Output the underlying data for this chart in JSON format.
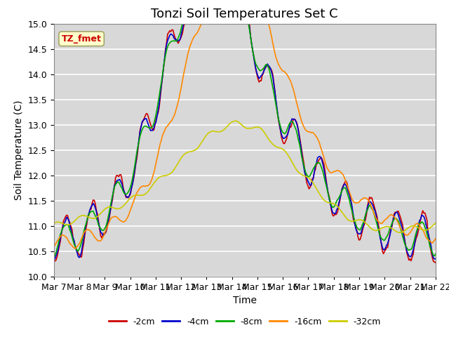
{
  "title": "Tonzi Soil Temperatures Set C",
  "xlabel": "Time",
  "ylabel": "Soil Temperature (C)",
  "ylim": [
    10.0,
    15.0
  ],
  "yticks": [
    10.0,
    10.5,
    11.0,
    11.5,
    12.0,
    12.5,
    13.0,
    13.5,
    14.0,
    14.5,
    15.0
  ],
  "xtick_labels": [
    "Mar 7",
    "Mar 8",
    "Mar 9",
    "Mar 10",
    "Mar 11",
    "Mar 12",
    "Mar 13",
    "Mar 14",
    "Mar 15",
    "Mar 16",
    "Mar 17",
    "Mar 18",
    "Mar 19",
    "Mar 20",
    "Mar 21",
    "Mar 22"
  ],
  "series_colors": [
    "#cc0000",
    "#0000cc",
    "#00aa00",
    "#ff8800",
    "#cccc00"
  ],
  "series_labels": [
    "-2cm",
    "-4cm",
    "-8cm",
    "-16cm",
    "-32cm"
  ],
  "annotation_text": "TZ_fmet",
  "annotation_color": "#cc0000",
  "annotation_bg": "#ffffcc",
  "background_color": "#d8d8d8",
  "grid_color": "#ffffff",
  "title_fontsize": 13,
  "label_fontsize": 10,
  "tick_fontsize": 9
}
